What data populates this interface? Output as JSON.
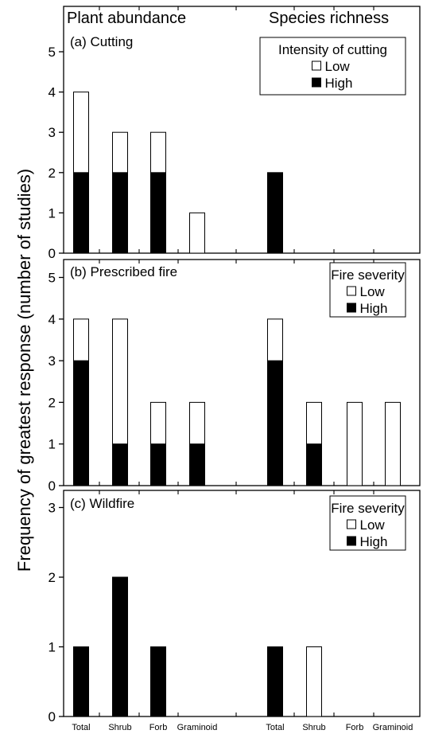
{
  "figure": {
    "ylabel": "Frequency of greatest response (number of studies)",
    "group_headers": [
      "Plant abundance",
      "Species richness"
    ]
  },
  "colors": {
    "low": "#ffffff",
    "high": "#000000",
    "axis": "#000000"
  },
  "chart_data": [
    {
      "type": "bar",
      "stacked": true,
      "title": "(a) Cutting",
      "groups": [
        "Plant abundance",
        "Species richness"
      ],
      "categories": [
        "Total",
        "Shrub",
        "Forb",
        "Graminoid",
        "Total",
        "Shrub",
        "Forb",
        "Graminoid"
      ],
      "series": [
        {
          "name": "High",
          "values": [
            2,
            2,
            2,
            0,
            2,
            0,
            0,
            0
          ]
        },
        {
          "name": "Low",
          "values": [
            2,
            1,
            1,
            1,
            0,
            0,
            0,
            0
          ]
        }
      ],
      "ylim": [
        0,
        5
      ],
      "yticks": [
        0,
        1,
        2,
        3,
        4,
        5
      ],
      "legend": {
        "title": "Intensity of cutting",
        "position": "top-right"
      }
    },
    {
      "type": "bar",
      "stacked": true,
      "title": "(b) Prescribed fire",
      "groups": [
        "Plant abundance",
        "Species richness"
      ],
      "categories": [
        "Total",
        "Shrub",
        "Forb",
        "Graminoid",
        "Total",
        "Shrub",
        "Forb",
        "Graminoid"
      ],
      "series": [
        {
          "name": "High",
          "values": [
            3,
            1,
            1,
            1,
            3,
            1,
            0,
            0
          ]
        },
        {
          "name": "Low",
          "values": [
            1,
            3,
            1,
            1,
            1,
            1,
            2,
            2
          ]
        }
      ],
      "ylim": [
        0,
        5
      ],
      "yticks": [
        0,
        1,
        2,
        3,
        4,
        5
      ],
      "legend": {
        "title": "Fire severity",
        "position": "top-right"
      }
    },
    {
      "type": "bar",
      "stacked": true,
      "title": "(c) Wildfire",
      "groups": [
        "Plant abundance",
        "Species richness"
      ],
      "categories": [
        "Total",
        "Shrub",
        "Forb",
        "Graminoid",
        "Total",
        "Shrub",
        "Forb",
        "Graminoid"
      ],
      "series": [
        {
          "name": "High",
          "values": [
            1,
            2,
            1,
            0,
            1,
            0,
            0,
            0
          ]
        },
        {
          "name": "Low",
          "values": [
            0,
            0,
            0,
            0,
            0,
            1,
            0,
            0
          ]
        }
      ],
      "ylim": [
        0,
        3
      ],
      "yticks": [
        0,
        1,
        2,
        3
      ],
      "legend": {
        "title": "Fire severity",
        "position": "top-right"
      }
    }
  ]
}
